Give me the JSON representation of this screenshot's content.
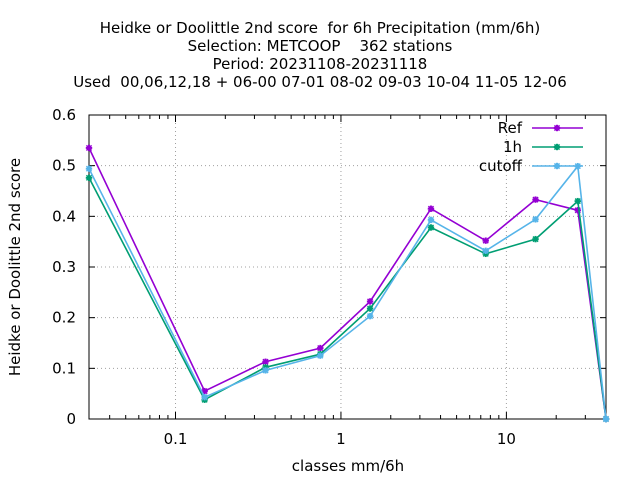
{
  "chart_data": {
    "type": "line",
    "title_lines": [
      "Heidke or Doolittle 2nd score  for 6h Precipitation (mm/6h)",
      "Selection: METCOOP    362 stations",
      "Period: 20231108-20231118",
      "Used  00,06,12,18 + 06-00 07-01 08-02 09-03 10-04 11-05 12-06"
    ],
    "xlabel": "classes mm/6h",
    "ylabel": "Heidke or Doolittle 2nd score",
    "x_scale": "log",
    "xlim": [
      0.03,
      40
    ],
    "ylim": [
      0,
      0.6
    ],
    "x_ticks": [
      0.1,
      1,
      10
    ],
    "x_tick_labels": [
      "0.1",
      "1",
      "10"
    ],
    "y_ticks": [
      0,
      0.1,
      0.2,
      0.3,
      0.4,
      0.5,
      0.6
    ],
    "y_tick_labels": [
      "0",
      "0.1",
      "0.2",
      "0.3",
      "0.4",
      "0.5",
      "0.6"
    ],
    "grid": true,
    "legend_position": "top-right",
    "x": [
      0.03,
      0.15,
      0.35,
      0.75,
      1.5,
      3.5,
      7.5,
      15,
      27,
      40
    ],
    "series": [
      {
        "name": "Ref",
        "color": "#9400d3",
        "values": [
          0.535,
          0.055,
          0.113,
          0.14,
          0.232,
          0.415,
          0.352,
          0.433,
          0.412,
          0.0
        ]
      },
      {
        "name": "1h",
        "color": "#009e73",
        "values": [
          0.476,
          0.038,
          0.102,
          0.128,
          0.218,
          0.378,
          0.326,
          0.355,
          0.43,
          0.0
        ]
      },
      {
        "name": "cutoff",
        "color": "#56b4e9",
        "values": [
          0.494,
          0.043,
          0.096,
          0.125,
          0.203,
          0.393,
          0.332,
          0.394,
          0.499,
          0.0
        ]
      }
    ]
  }
}
